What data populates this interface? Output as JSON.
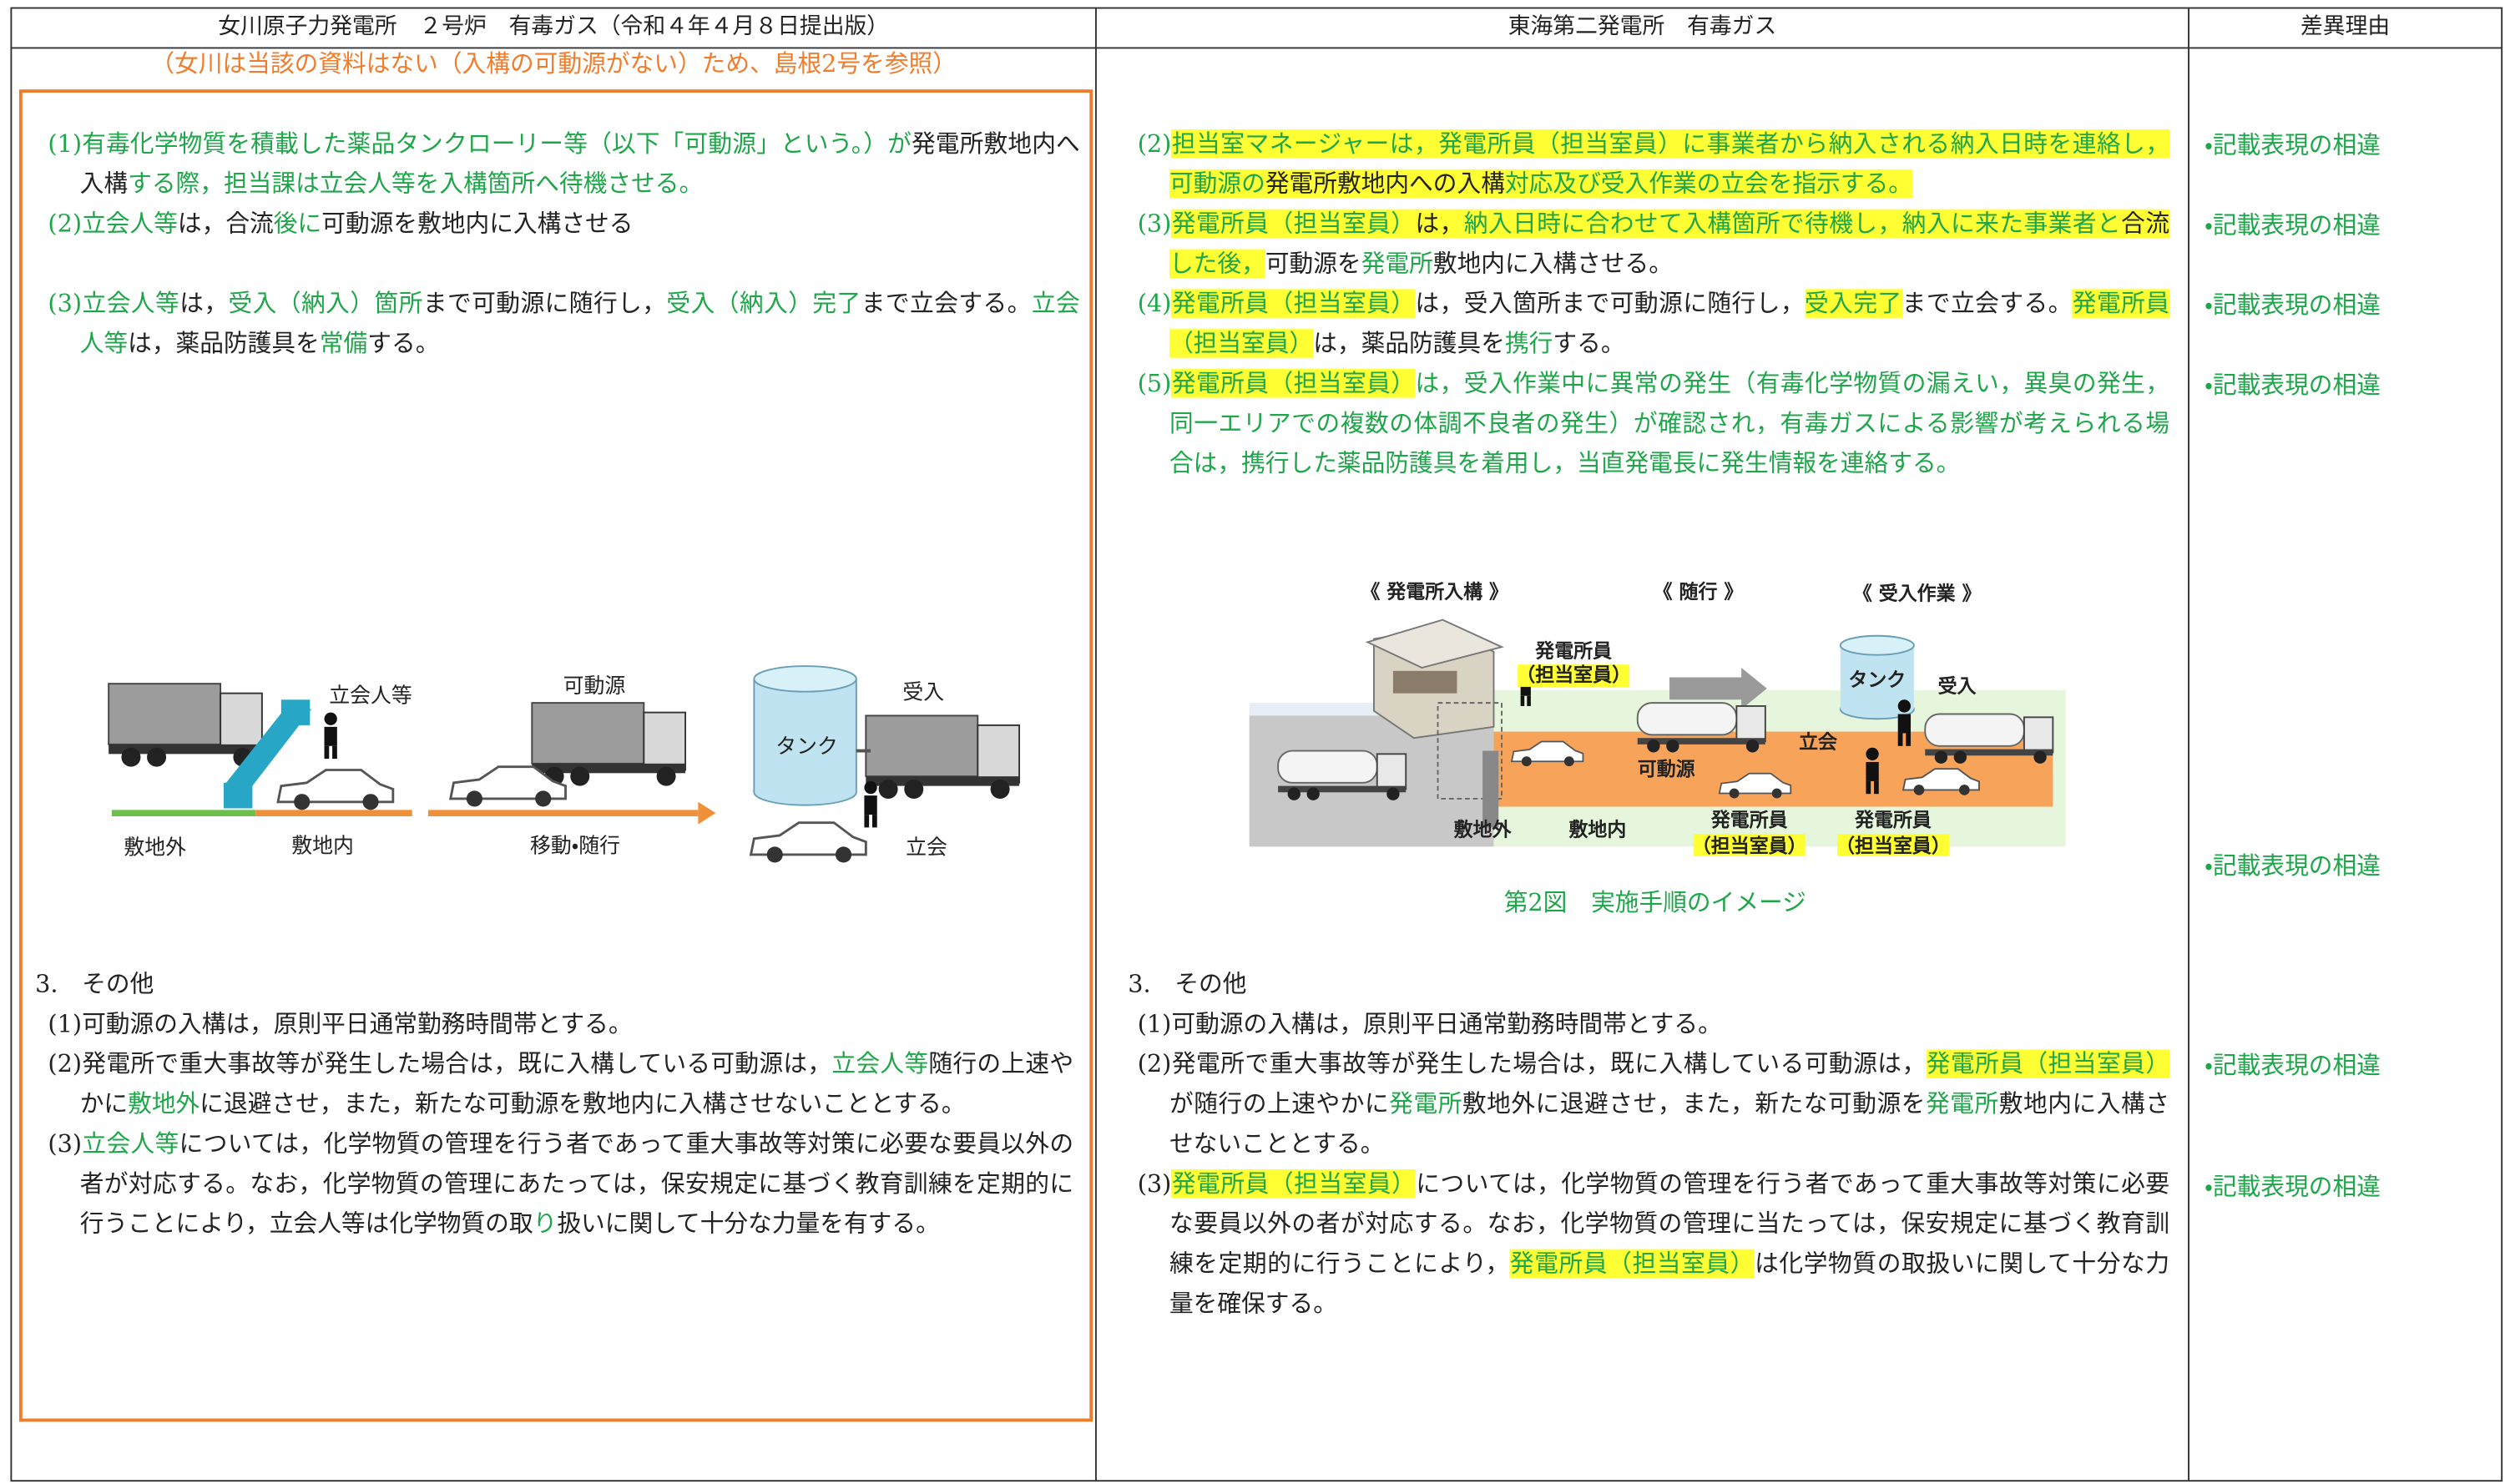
{
  "header": {
    "col1": "女川原子力発電所　２号炉　有毒ガス（令和４年４月８日提出版）",
    "col2": "東海第二発電所　有毒ガス",
    "col3": "差異理由"
  },
  "left": {
    "note": "（女川は当該の資料はない（入構の可動源がない）ため、島根2号を参照）",
    "items": [
      {
        "runs": [
          {
            "text": "(1)有毒化学物質を積載した薬品タンクローリー等（以下「可動源」という。）が",
            "style": "green"
          },
          {
            "text": "発電所敷地内へ入構"
          },
          {
            "text": "する際，担当課は立会人等を入構箇所へ待機させる。",
            "style": "green"
          }
        ]
      },
      {
        "runs": [
          {
            "text": "(2)立会人等",
            "style": "green"
          },
          {
            "text": "は，合流"
          },
          {
            "text": "後に",
            "style": "green"
          },
          {
            "text": "可動源を敷地内に入構させる"
          }
        ]
      },
      {
        "runs": [
          {
            "text": "(3)立会人等",
            "style": "green"
          },
          {
            "text": "は，"
          },
          {
            "text": "受入（納入）箇所",
            "style": "green"
          },
          {
            "text": "まで可動源に随行し，"
          },
          {
            "text": "受入（納入）完了",
            "style": "green"
          },
          {
            "text": "まで立会する。"
          },
          {
            "text": "立会人等",
            "style": "green"
          },
          {
            "text": "は，薬品防護具を"
          },
          {
            "text": "常備",
            "style": "green"
          },
          {
            "text": "する。"
          }
        ]
      }
    ],
    "figure": {
      "labels": [
        "立会人等",
        "可動源",
        "受入",
        "タンク",
        "敷地外",
        "敷地内",
        "移動・随行",
        "立会"
      ]
    },
    "other_heading": "3.　その他",
    "other_items": [
      {
        "runs": [
          {
            "text": "(1)可動源の入構は，原則平日通常勤務時間帯とする。"
          }
        ]
      },
      {
        "runs": [
          {
            "text": "(2)発電所で重大事故等が発生した場合は，既に入構している可動源は，"
          },
          {
            "text": "立会人等",
            "style": "green"
          },
          {
            "text": "随行の上速やかに"
          },
          {
            "text": "敷地外",
            "style": "green"
          },
          {
            "text": "に退避させ，また，新たな可動源を敷地内に入構させないこととする。"
          }
        ]
      },
      {
        "runs": [
          {
            "text": "(3)"
          },
          {
            "text": "立会人等",
            "style": "green"
          },
          {
            "text": "については，化学物質の管理を行う者であって重大事故等対策に必要な要員以外の者が対応する。なお，化学物質の管理にあたっては，保安規定に基づく教育訓練を定期的に行うことにより，立会人等は化学物質の取"
          },
          {
            "text": "り",
            "style": "green"
          },
          {
            "text": "扱いに関して十分な力量を有する。"
          }
        ]
      }
    ]
  },
  "middle": {
    "items": [
      {
        "runs": [
          {
            "text": "(2)",
            "style": "green"
          },
          {
            "text": "担当室マネージャーは，発電所員（担当室員）に事業者から納入される納入日時を連絡し，可動源の",
            "style": "green-highlight"
          },
          {
            "text": "発電所敷地内への入構",
            "style": "highlight"
          },
          {
            "text": "対応及び受入作業の立会を指示する。",
            "style": "green-highlight"
          }
        ]
      },
      {
        "runs": [
          {
            "text": "(3)",
            "style": "green"
          },
          {
            "text": "発電所員（担当室員）",
            "style": "green-highlight"
          },
          {
            "text": "は，",
            "style": "highlight"
          },
          {
            "text": "納入日時に合わせて入構箇所で待機し，納入に来た事業者と",
            "style": "green-highlight"
          },
          {
            "text": "合流",
            "style": "highlight"
          },
          {
            "text": "した後，",
            "style": "green-highlight"
          },
          {
            "text": "可動源を"
          },
          {
            "text": "発電所",
            "style": "green"
          },
          {
            "text": "敷地内に入構させる。"
          }
        ]
      },
      {
        "runs": [
          {
            "text": "(4)",
            "style": "green"
          },
          {
            "text": "発電所員（担当室員）",
            "style": "green-highlight"
          },
          {
            "text": "は，受入箇所まで可動源に随行し，"
          },
          {
            "text": "受入完了",
            "style": "green-highlight"
          },
          {
            "text": "まで立会する。"
          },
          {
            "text": "発電所員（担当室員）",
            "style": "green-highlight"
          },
          {
            "text": "は，薬品防護具を"
          },
          {
            "text": "携行",
            "style": "green"
          },
          {
            "text": "する。"
          }
        ]
      },
      {
        "runs": [
          {
            "text": "(5)",
            "style": "green"
          },
          {
            "text": "発電所員（担当室員）",
            "style": "green-highlight"
          },
          {
            "text": "は，受入作業中に異常の発生（有毒化学物質の漏えい，異臭の発生，同一エリアでの複数の体調不良者の発生）が確認され，有毒ガスによる影響が考えられる場合は，携行した薬品防護具を着用し，当直発電長に発生情報を連絡する。",
            "style": "green"
          }
        ]
      }
    ],
    "figure": {
      "labels": [
        "《 発電所入構 》",
        "《 随行 》",
        "《 受入作業 》",
        "発電所員",
        "（担当室員）",
        "タンク",
        "受入",
        "立会",
        "可動源",
        "敷地外",
        "敷地内",
        "発電所員",
        "（担当室員）",
        "発電所員",
        "（担当室員）"
      ],
      "caption": "第2図　実施手順のイメージ"
    },
    "other_heading": "3.　その他",
    "other_items": [
      {
        "runs": [
          {
            "text": "(1)可動源の入構は，原則平日通常勤務時間帯とする。"
          }
        ]
      },
      {
        "runs": [
          {
            "text": "(2)発電所で重大事故等が発生した場合は，既に入構している可動源は，"
          },
          {
            "text": "発電所員（担当室員）",
            "style": "green-highlight"
          },
          {
            "text": "が随行の上速やかに"
          },
          {
            "text": "発電所",
            "style": "green"
          },
          {
            "text": "敷地外に退避させ，また，新たな可動源を"
          },
          {
            "text": "発電所",
            "style": "green"
          },
          {
            "text": "敷地内に入構させないこととする。"
          }
        ]
      },
      {
        "runs": [
          {
            "text": "(3)"
          },
          {
            "text": "発電所員（担当室員）",
            "style": "green-highlight"
          },
          {
            "text": "については，化学物質の管理を行う者であって重大事故等対策に必要な要員以外の者が対応する。なお，化学物質の管理に当たっては，保安規定に基づく教育訓練を定期的に行うことにより，"
          },
          {
            "text": "発電所員（担当室員）",
            "style": "green-highlight"
          },
          {
            "text": "は化学物質の取扱いに関して十分な力量を確保する。"
          }
        ]
      }
    ]
  },
  "reasons": [
    "・記載表現の相違",
    "・記載表現の相違",
    "・記載表現の相違",
    "・記載表現の相違",
    "・記載表現の相違",
    "・記載表現の相違",
    "・記載表現の相違"
  ]
}
